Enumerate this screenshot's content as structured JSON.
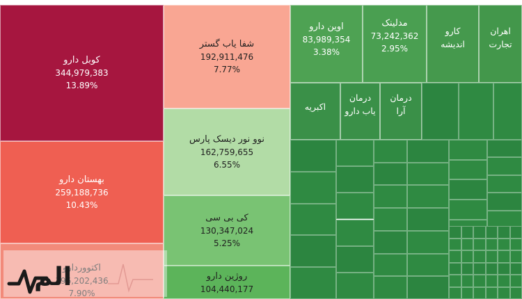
{
  "chart_data": {
    "type": "treemap",
    "title": "",
    "items": [
      {
        "name": "کوبل دارو",
        "value": "344,979,383",
        "percent": "13.89%",
        "color": "#a6163f"
      },
      {
        "name": "بهستان دارو",
        "value": "259,188,736",
        "percent": "10.43%",
        "color": "#ef5f52"
      },
      {
        "name": "اکتووردارو",
        "value": "196,202,436",
        "percent": "7.90%",
        "color": "#f28a7a"
      },
      {
        "name": "شفا یاب گستر",
        "value": "192,911,476",
        "percent": "7.77%",
        "color": "#f9a693"
      },
      {
        "name": "نوو نور دیسک پارس",
        "value": "162,759,655",
        "percent": "6.55%",
        "color": "#b2dca6"
      },
      {
        "name": "کی بی سی",
        "value": "130,347,024",
        "percent": "5.25%",
        "color": "#79c373"
      },
      {
        "name": "روژین دارو",
        "value": "104,440,177",
        "percent": "",
        "color": "#5cb45a"
      },
      {
        "name": "اوین دارو",
        "value": "83,989,354",
        "percent": "3.38%",
        "color": "#4ea253"
      },
      {
        "name": "مدلینک",
        "value": "73,242,362",
        "percent": "2.95%",
        "color": "#4a9f51"
      },
      {
        "name": "کارو اندیشه",
        "value": "",
        "percent": "",
        "color": "#45994d"
      },
      {
        "name": "اهران تجارت",
        "value": "",
        "percent": "",
        "color": "#43974b"
      },
      {
        "name": "اکبریه",
        "value": "",
        "percent": "",
        "color": "#3a9048"
      },
      {
        "name": "درمان یاب دارو",
        "value": "",
        "percent": "",
        "color": "#3a9048"
      },
      {
        "name": "درمان آرا",
        "value": "",
        "percent": "",
        "color": "#3a9048"
      }
    ]
  },
  "colors": {
    "small_tiles": "#2f8a42",
    "small_tiles_alt": "#2c8540"
  },
  "watermark": {
    "text": "الم"
  }
}
